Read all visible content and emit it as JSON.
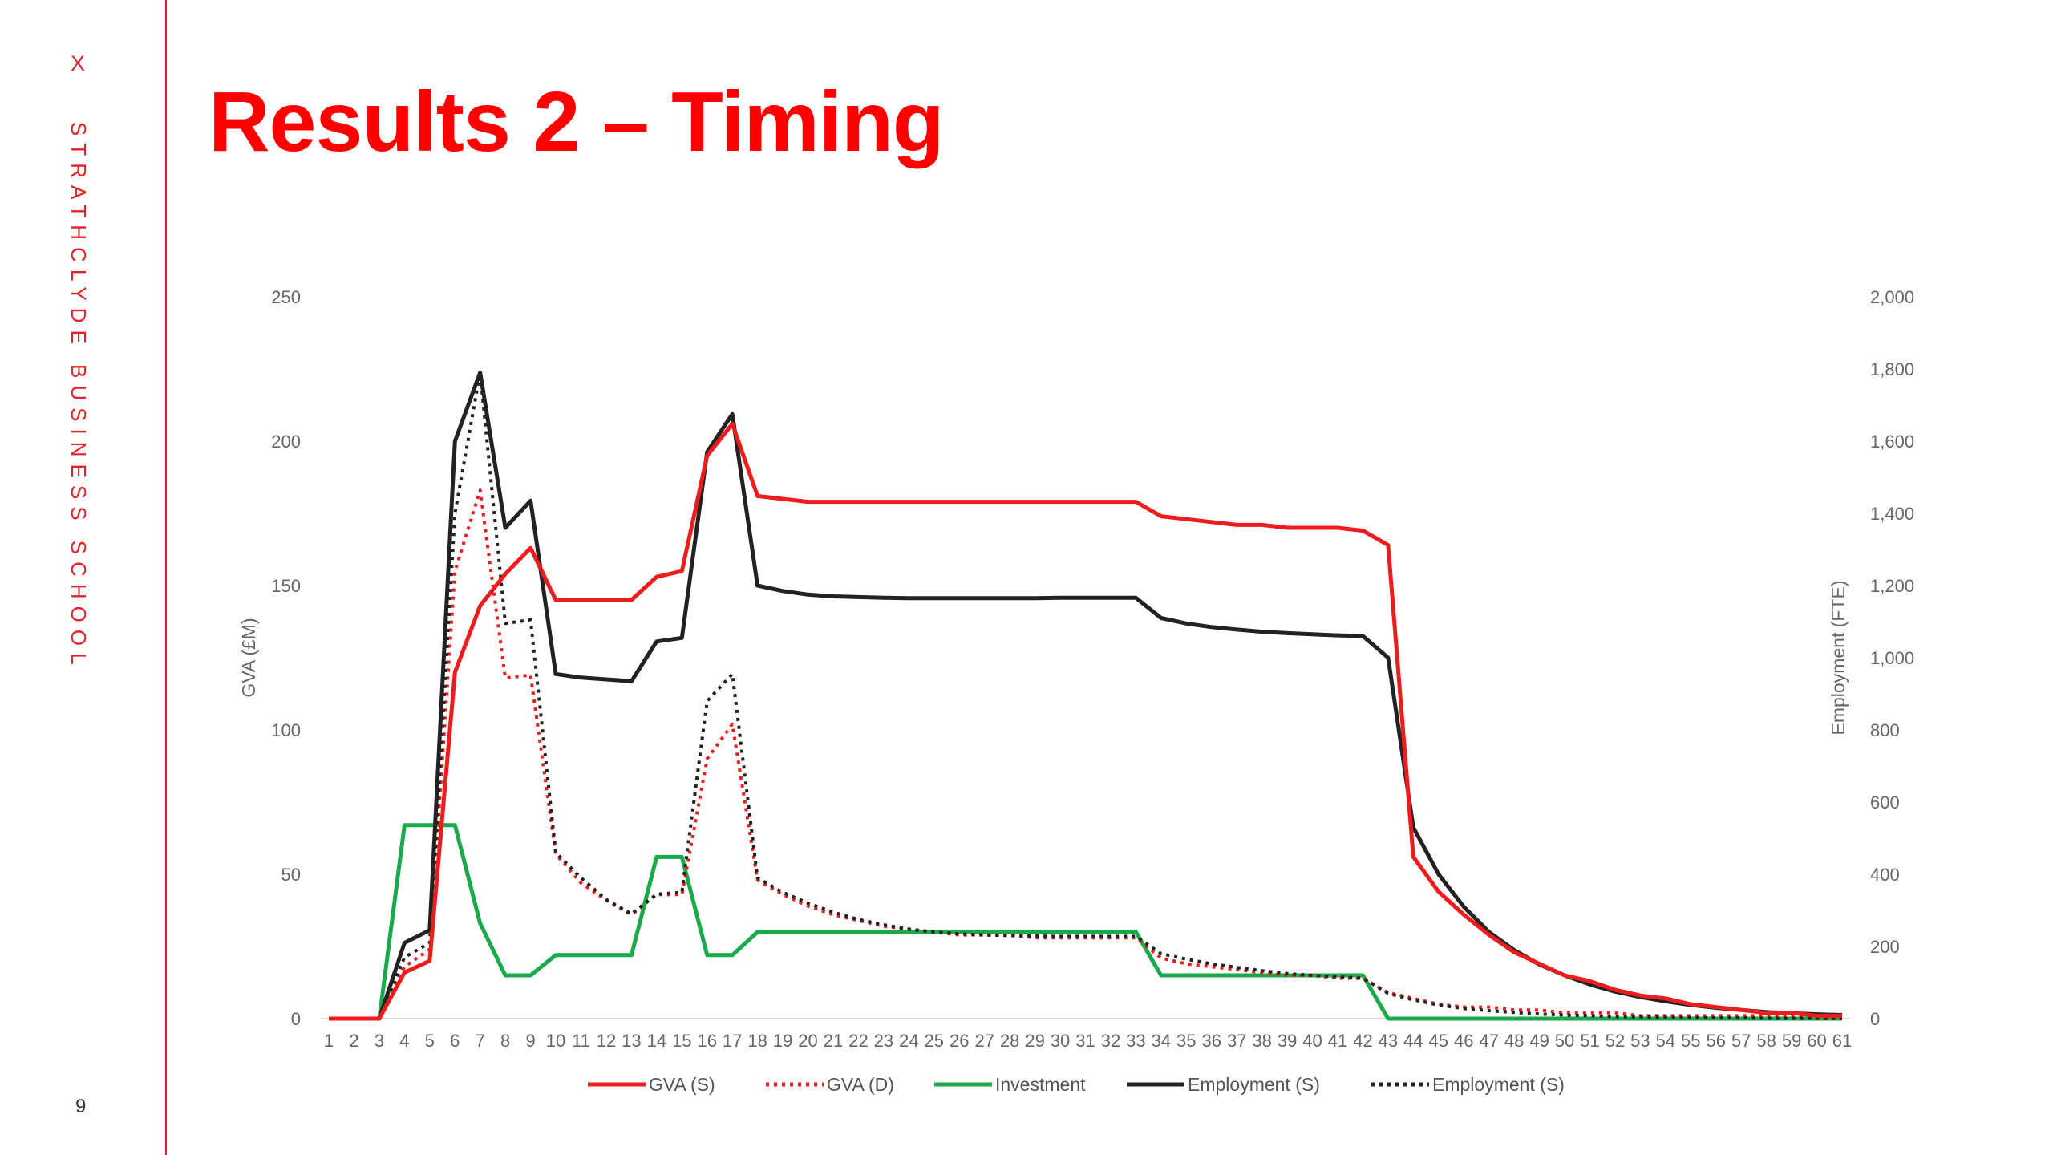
{
  "slide": {
    "title": "Results 2 – Timing",
    "brand_mark": "X",
    "brand_name": "STRATHCLYDE BUSINESS SCHOOL",
    "page_number": "9",
    "accent_color": "#e8202a"
  },
  "chart_data": {
    "type": "line",
    "title": "",
    "xlabel": "",
    "ylabel": "GVA (£M)",
    "y2label": "Employment (FTE)",
    "x": [
      1,
      2,
      3,
      4,
      5,
      6,
      7,
      8,
      9,
      10,
      11,
      12,
      13,
      14,
      15,
      16,
      17,
      18,
      19,
      20,
      21,
      22,
      23,
      24,
      25,
      26,
      27,
      28,
      29,
      30,
      31,
      32,
      33,
      34,
      35,
      36,
      37,
      38,
      39,
      40,
      41,
      42,
      43,
      44,
      45,
      46,
      47,
      48,
      49,
      50,
      51,
      52,
      53,
      54,
      55,
      56,
      57,
      58,
      59,
      60,
      61
    ],
    "ylim": [
      0,
      250
    ],
    "yticks": [
      0,
      50,
      100,
      150,
      200,
      250
    ],
    "y2lim": [
      0,
      2000
    ],
    "y2ticks": [
      0,
      200,
      400,
      600,
      800,
      1000,
      1200,
      1400,
      1600,
      1800,
      2000
    ],
    "y2tick_labels": [
      "0",
      "200",
      "400",
      "600",
      "800",
      "1,000",
      "1,200",
      "1,400",
      "1,600",
      "1,800",
      "2,000"
    ],
    "grid": false,
    "legend_position": "bottom",
    "series": [
      {
        "name": "GVA (S)",
        "axis": "left",
        "color": "#ee1c1c",
        "dash": "solid",
        "values": [
          0,
          0,
          0,
          16,
          20,
          120,
          143,
          154,
          163,
          145,
          145,
          145,
          145,
          153,
          155,
          195,
          206,
          181,
          180,
          179,
          179,
          179,
          179,
          179,
          179,
          179,
          179,
          179,
          179,
          179,
          179,
          179,
          179,
          174,
          173,
          172,
          171,
          171,
          170,
          170,
          170,
          169,
          164,
          56,
          44,
          36,
          29,
          23,
          19,
          15,
          13,
          10,
          8,
          7,
          5,
          4,
          3,
          2,
          2,
          1,
          1
        ]
      },
      {
        "name": "GVA (D)",
        "axis": "left",
        "color": "#ee1c1c",
        "dash": "dotted",
        "values": [
          0,
          0,
          0,
          18,
          24,
          155,
          183,
          118,
          119,
          57,
          47,
          41,
          36,
          43,
          43,
          90,
          102,
          48,
          43,
          39,
          36,
          34,
          32,
          31,
          30,
          29,
          29,
          29,
          28,
          28,
          28,
          28,
          28,
          21,
          19,
          18,
          17,
          16,
          15,
          15,
          14,
          14,
          9,
          7,
          5,
          4,
          4,
          3,
          3,
          2,
          2,
          2,
          1,
          1,
          1,
          1,
          1,
          1,
          1,
          0,
          0
        ]
      },
      {
        "name": "Investment",
        "axis": "left",
        "color": "#1aaa4b",
        "dash": "solid",
        "values": [
          0,
          0,
          0,
          67,
          67,
          67,
          33,
          15,
          15,
          22,
          22,
          22,
          22,
          56,
          56,
          22,
          22,
          30,
          30,
          30,
          30,
          30,
          30,
          30,
          30,
          30,
          30,
          30,
          30,
          30,
          30,
          30,
          30,
          15,
          15,
          15,
          15,
          15,
          15,
          15,
          15,
          15,
          0,
          0,
          0,
          0,
          0,
          0,
          0,
          0,
          0,
          0,
          0,
          0,
          0,
          0,
          0,
          0,
          0,
          0,
          0
        ]
      },
      {
        "name": "Employment (S)",
        "axis": "right",
        "color": "#222222",
        "dash": "solid",
        "values": [
          0,
          0,
          0,
          210,
          245,
          1600,
          1790,
          1360,
          1435,
          955,
          945,
          940,
          935,
          1045,
          1055,
          1570,
          1675,
          1200,
          1185,
          1175,
          1170,
          1168,
          1166,
          1165,
          1165,
          1165,
          1165,
          1165,
          1165,
          1166,
          1166,
          1166,
          1166,
          1110,
          1095,
          1085,
          1078,
          1072,
          1068,
          1065,
          1062,
          1060,
          1000,
          530,
          400,
          310,
          240,
          190,
          150,
          120,
          95,
          75,
          60,
          48,
          38,
          30,
          24,
          18,
          15,
          12,
          10
        ]
      },
      {
        "name": "Employment (S)",
        "axis": "right",
        "color": "#222222",
        "dash": "dotted",
        "values": [
          0,
          0,
          0,
          170,
          210,
          1400,
          1790,
          1095,
          1105,
          460,
          390,
          330,
          290,
          345,
          350,
          880,
          955,
          390,
          350,
          320,
          295,
          275,
          260,
          248,
          240,
          235,
          232,
          230,
          229,
          228,
          228,
          228,
          228,
          180,
          165,
          152,
          142,
          133,
          125,
          120,
          116,
          112,
          70,
          52,
          38,
          28,
          22,
          17,
          13,
          10,
          8,
          6,
          5,
          4,
          3,
          2,
          2,
          1,
          1,
          1,
          0
        ]
      }
    ]
  }
}
